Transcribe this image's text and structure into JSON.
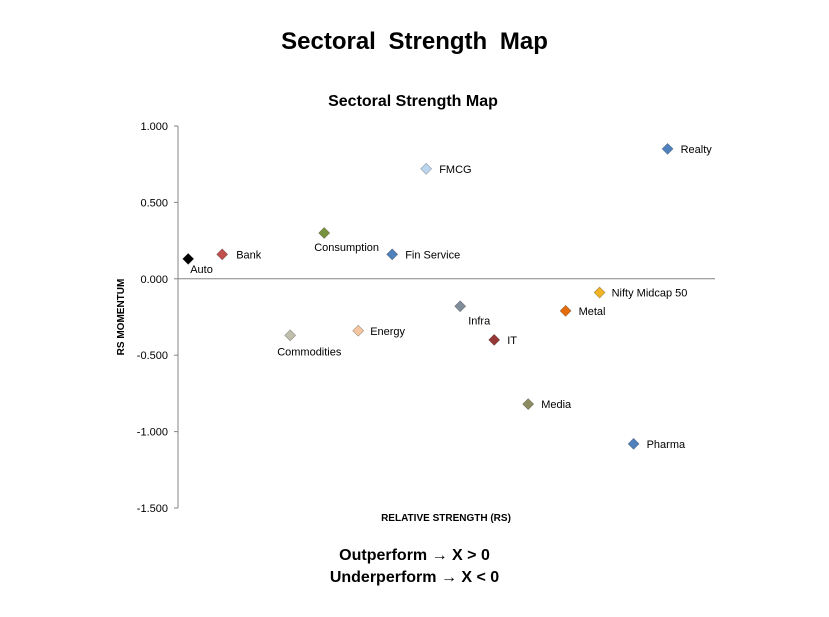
{
  "page_title": "Sectoral  Strength  Map",
  "footer": {
    "line1": "Outperform → X > 0",
    "line2": "Underperform → X < 0"
  },
  "chart_data": {
    "type": "scatter",
    "title": "Sectoral Strength Map",
    "xlabel": "RELATIVE STRENGTH (RS)",
    "ylabel": "RS MOMENTUM",
    "ylim": [
      -1.5,
      1.0
    ],
    "y_ticks": [
      1.0,
      0.5,
      0.0,
      -0.5,
      -1.0,
      -1.5
    ],
    "y_tick_labels": [
      "1.000",
      "0.500",
      "0.000",
      "-0.500",
      "-1.000",
      "-1.500"
    ],
    "grid": false,
    "legend": "none",
    "points": [
      {
        "label": "Auto",
        "x": -3.2,
        "y": 0.13,
        "color": "#000000"
      },
      {
        "label": "Bank",
        "x": -2.2,
        "y": 0.16,
        "color": "#c0504d"
      },
      {
        "label": "Consumption",
        "x": 0.8,
        "y": 0.3,
        "color": "#77933c"
      },
      {
        "label": "FMCG",
        "x": 3.8,
        "y": 0.72,
        "color": "#b9d6ee"
      },
      {
        "label": "Fin Service",
        "x": 2.8,
        "y": 0.16,
        "color": "#4f81bd"
      },
      {
        "label": "Realty",
        "x": 10.9,
        "y": 0.85,
        "color": "#4f81bd"
      },
      {
        "label": "Nifty Midcap 50",
        "x": 8.9,
        "y": -0.09,
        "color": "#f0b323"
      },
      {
        "label": "Metal",
        "x": 7.9,
        "y": -0.21,
        "color": "#e46c0a"
      },
      {
        "label": "Infra",
        "x": 4.8,
        "y": -0.18,
        "color": "#7f8c99"
      },
      {
        "label": "IT",
        "x": 5.8,
        "y": -0.4,
        "color": "#953735"
      },
      {
        "label": "Energy",
        "x": 1.8,
        "y": -0.34,
        "color": "#f5c6a0"
      },
      {
        "label": "Commodities",
        "x": -0.2,
        "y": -0.37,
        "color": "#bfbfac"
      },
      {
        "label": "Media",
        "x": 6.8,
        "y": -0.82,
        "color": "#8c8c60"
      },
      {
        "label": "Pharma",
        "x": 9.9,
        "y": -1.08,
        "color": "#4f81bd"
      }
    ]
  }
}
